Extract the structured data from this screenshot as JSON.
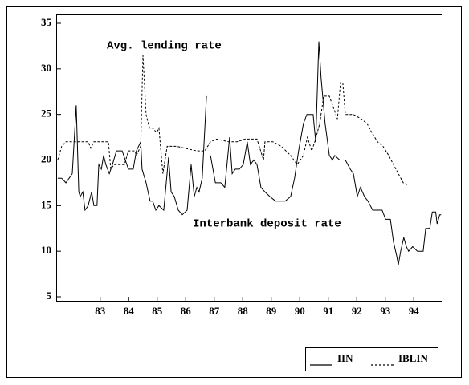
{
  "chart_data": {
    "type": "line",
    "annotations": [
      "Avg. lending rate",
      "Interbank deposit rate"
    ],
    "series": [
      {
        "name": "IIN",
        "color": "#000000",
        "dash": false,
        "x": [
          82.01,
          82.15,
          82.3,
          82.52,
          82.66,
          82.75,
          82.8,
          82.89,
          82.97,
          83.08,
          83.2,
          83.28,
          83.39,
          83.45,
          83.54,
          83.62,
          83.7,
          83.82,
          83.93,
          84.07,
          84.27,
          84.38,
          84.49,
          84.66,
          84.77,
          84.92,
          84.97,
          85.11,
          85.25,
          85.34,
          85.45,
          85.56,
          85.73,
          85.9,
          85.99,
          86.1,
          86.24,
          86.38,
          86.55,
          86.69,
          86.8,
          86.89,
          86.97,
          87.08,
          87.23,
          87.3,
          87.37,
          87.54,
          87.73,
          87.87,
          88.04,
          88.13,
          88.24,
          88.38,
          88.52,
          88.66,
          88.77,
          88.89,
          89.0,
          89.14,
          89.28,
          89.45,
          89.65,
          89.99,
          90.18,
          90.32,
          90.46,
          90.63,
          90.75,
          90.97,
          91.06,
          91.17,
          91.25,
          91.39,
          91.54,
          91.65,
          91.73,
          91.9,
          92.1,
          92.27,
          92.38,
          92.52,
          92.63,
          92.77,
          92.89,
          93.06,
          93.23,
          93.39,
          93.51,
          93.68,
          93.79,
          93.9,
          93.96,
          94.04,
          94.15,
          94.24,
          94.32,
          94.46,
          94.63,
          94.83,
          94.92,
          95.06,
          95.15,
          95.27,
          95.32,
          95.41,
          95.46
        ],
        "values": [
          18,
          18,
          17.5,
          18.5,
          26,
          16.5,
          16,
          16.5,
          14.5,
          15,
          16.5,
          15,
          15,
          19.5,
          19,
          20.5,
          19.5,
          18.5,
          19.5,
          21,
          21,
          20,
          19,
          19,
          21,
          22,
          19,
          17.5,
          15.5,
          15.5,
          14.5,
          15,
          14.5,
          20.3,
          16.5,
          16,
          14.5,
          14,
          14.5,
          19.5,
          16,
          17,
          16.5,
          18,
          27,
          null,
          20.5,
          17.5,
          17.5,
          17,
          22.5,
          18.5,
          19,
          19,
          19.5,
          22,
          19.5,
          20,
          19.5,
          17,
          16.5,
          16,
          15.5,
          15.5,
          16,
          18,
          21,
          24,
          25,
          25,
          22,
          33,
          29,
          24,
          20.5,
          20,
          20.5,
          20,
          20,
          19,
          18.5,
          16,
          17,
          16,
          15.5,
          14.5,
          14.5,
          14.5,
          13.5,
          13.5,
          11,
          9.5,
          8.5,
          10,
          11.5,
          10.5,
          10,
          10.5,
          10,
          10,
          12.5,
          12.5,
          14.3,
          14.3,
          13,
          14,
          14
        ]
      },
      {
        "name": "IBLIN",
        "color": "#000000",
        "dash": true,
        "x": [
          82.01,
          82.15,
          82.3,
          82.52,
          82.8,
          83.08,
          83.17,
          83.28,
          83.79,
          83.87,
          83.99,
          84.35,
          84.49,
          84.72,
          84.77,
          84.92,
          85.0,
          85.11,
          85.23,
          85.34,
          85.48,
          85.56,
          85.7,
          85.85,
          86.18,
          86.61,
          86.89,
          87.17,
          87.37,
          87.59,
          88.01,
          88.3,
          88.58,
          89.0,
          89.23,
          89.28,
          89.56,
          89.85,
          90.18,
          90.41,
          90.63,
          90.77,
          90.92,
          91.03,
          91.2,
          91.34,
          91.54,
          91.82,
          91.93,
          92.01,
          92.1,
          92.38,
          92.66,
          92.86,
          93.03,
          93.23,
          93.42,
          93.62,
          93.79,
          93.96,
          94.13,
          94.27
        ],
        "values": [
          20,
          21.5,
          22,
          22,
          22,
          22,
          21.3,
          22,
          22,
          19,
          19.5,
          19.5,
          21,
          21,
          20.5,
          21.5,
          31.5,
          25,
          23.5,
          23.5,
          23,
          23.5,
          18.5,
          21.5,
          21.5,
          21.2,
          21,
          21,
          22,
          22.3,
          22,
          22,
          22.3,
          22.3,
          20,
          22,
          22,
          21.5,
          20.5,
          19.5,
          20.5,
          22.5,
          21,
          22,
          24,
          27,
          27,
          24.5,
          28.5,
          28.5,
          25,
          25,
          24.5,
          24,
          23,
          22,
          21.5,
          20.5,
          19.5,
          18.5,
          17.5,
          17.3
        ]
      }
    ],
    "xlim": [
      82,
      95.48
    ],
    "xticks": [
      {
        "value": 83.5,
        "label": "83"
      },
      {
        "value": 84.5,
        "label": "84"
      },
      {
        "value": 85.5,
        "label": "85"
      },
      {
        "value": 86.5,
        "label": "86"
      },
      {
        "value": 87.5,
        "label": "87"
      },
      {
        "value": 88.5,
        "label": "88"
      },
      {
        "value": 89.5,
        "label": "89"
      },
      {
        "value": 90.5,
        "label": "90"
      },
      {
        "value": 91.5,
        "label": "91"
      },
      {
        "value": 92.5,
        "label": "92"
      },
      {
        "value": 93.5,
        "label": "93"
      },
      {
        "value": 94.5,
        "label": "94"
      }
    ],
    "ylim": [
      5,
      35
    ],
    "yticks": [
      5,
      10,
      15,
      20,
      25,
      30,
      35
    ],
    "grid": false,
    "legend": "bottom-right"
  }
}
